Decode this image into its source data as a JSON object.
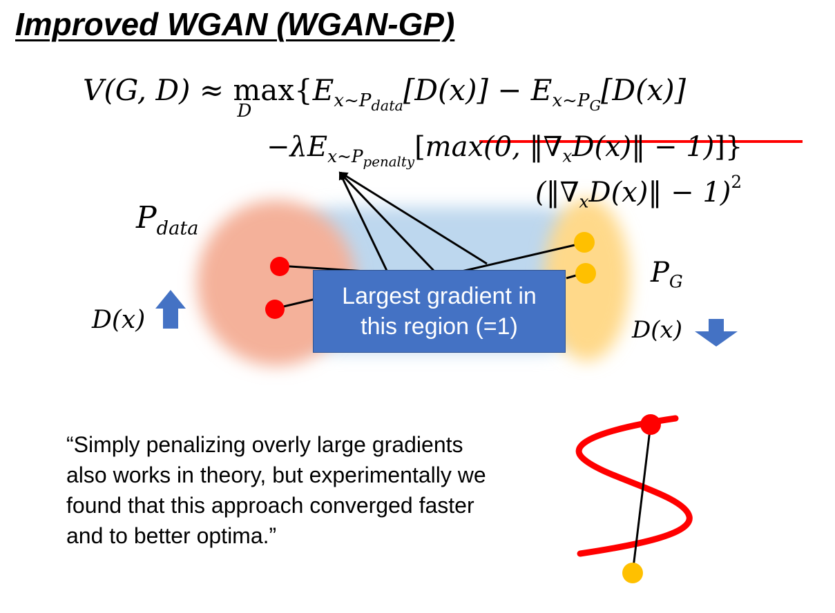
{
  "title": "Improved WGAN (WGAN-GP)",
  "equation": {
    "line1": {
      "lhs": "V(G, D)",
      "approx": "≈",
      "max_op": "max",
      "max_sub": "D",
      "term1_E": "E",
      "term1_sub": "x~P",
      "term1_subsub": "data",
      "term1_body": "[D(x)] −",
      "term2_E": "E",
      "term2_sub": "x~P",
      "term2_subsub": "G",
      "term2_body": "[D(x)]",
      "open_brace": "{"
    },
    "line2": {
      "lambda_E": "−λE",
      "sub": "x~P",
      "subsub": "penalty",
      "bracket_open": "[",
      "struck_text": "max(0, ‖∇",
      "struck_sub": "x",
      "struck_text2": "D(x)‖ − 1)",
      "bracket_close": "]}"
    },
    "replacement": {
      "text": "(‖∇",
      "sub": "x",
      "text2": "D(x)‖ − 1)",
      "sup": "2"
    }
  },
  "labels": {
    "pdata_main": "P",
    "pdata_sub": "data",
    "pg_main": "P",
    "pg_sub": "G",
    "dx_left": "D(x)",
    "dx_right": "D(x)"
  },
  "callout": {
    "line1": "Largest gradient in",
    "line2": "this region (=1)"
  },
  "quote": "“Simply penalizing overly large gradients also works in theory, but experimentally we found that this approach converged faster and to better optima.”",
  "colors": {
    "pdata_blob": "#f4b19a",
    "pg_blob": "#ffd98a",
    "middle_region": "#bdd7ee",
    "callout_bg": "#4472c4",
    "arrow_blue": "#4472c4",
    "red_point": "#ff0000",
    "yellow_point": "#ffc000",
    "strike_red": "#ff0000",
    "curve_red": "#ff0000"
  },
  "icons": {
    "dx_left_arrow": "arrow-up-icon",
    "dx_right_arrow": "arrow-down-icon"
  }
}
